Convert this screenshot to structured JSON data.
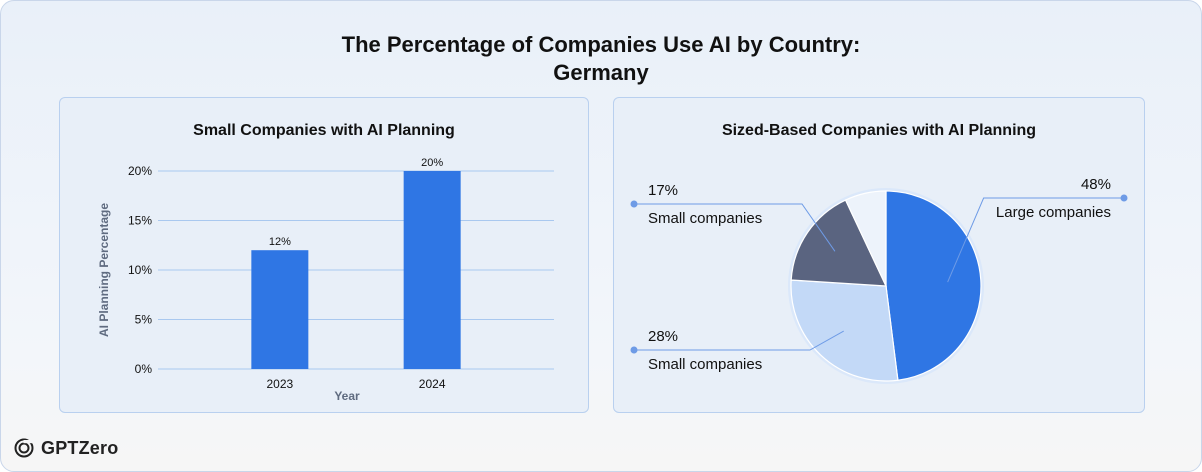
{
  "header": {
    "title_line1": "The Percentage of Companies Use AI by Country:",
    "title_line2": "Germany"
  },
  "brand": {
    "name": "GPTZero",
    "icon": "gptzero-logo-icon"
  },
  "colors": {
    "bar": "#2f76e4",
    "grid": "#a9c8ef",
    "pie_large": "#2f76e4",
    "pie_small28": "#c3d9f7",
    "pie_small17": "#5a6480",
    "pie_other": "#edf3fb",
    "callout": "#6e9be6"
  },
  "chart_data": [
    {
      "type": "bar",
      "title": "Small Companies with AI Planning",
      "categories": [
        "2023",
        "2024"
      ],
      "values": [
        12,
        20
      ],
      "value_labels": [
        "12%",
        "20%"
      ],
      "xlabel": "Year",
      "ylabel": "AI Planning Percentage",
      "ylim": [
        0,
        20
      ],
      "yticks": [
        0,
        5,
        10,
        15,
        20
      ],
      "ytick_labels": [
        "0%",
        "5%",
        "10%",
        "15%",
        "20%"
      ],
      "grid": true
    },
    {
      "type": "pie",
      "title": "Sized-Based Companies with AI Planning",
      "slices": [
        {
          "label": "Large companies",
          "value": 48,
          "value_label": "48%",
          "color_key": "pie_large",
          "labeled": true,
          "side": "right"
        },
        {
          "label": "Small companies",
          "value": 28,
          "value_label": "28%",
          "color_key": "pie_small28",
          "labeled": true,
          "side": "left"
        },
        {
          "label": "Small companies",
          "value": 17,
          "value_label": "17%",
          "color_key": "pie_small17",
          "labeled": true,
          "side": "left"
        },
        {
          "label": "",
          "value": 7,
          "value_label": "",
          "color_key": "pie_other",
          "labeled": false
        }
      ]
    }
  ]
}
